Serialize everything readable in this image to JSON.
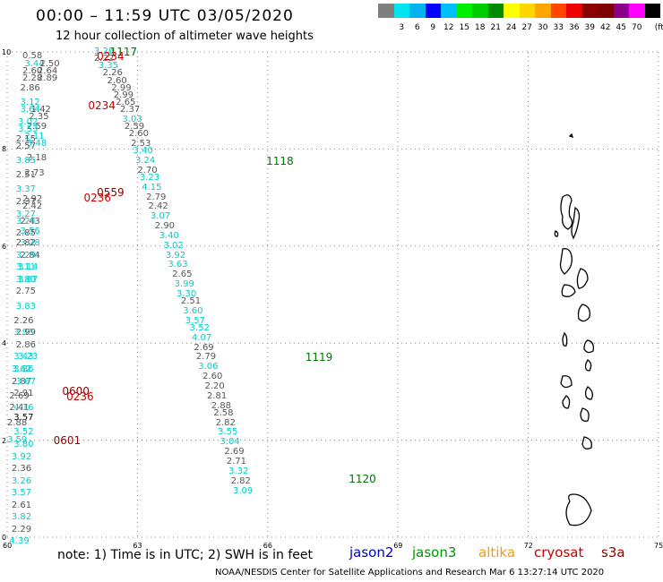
{
  "title": "00:00 – 11:59 UTC 03/05/2020",
  "subtitle": "12 hour collection of altimeter wave heights",
  "colorbar": {
    "colors": [
      "#7f7f7f",
      "#00e5ee",
      "#00b2ee",
      "#0000ff",
      "#00bfff",
      "#00ee00",
      "#00cd00",
      "#008b00",
      "#ffff00",
      "#ffd700",
      "#ffa500",
      "#ff4500",
      "#ee0000",
      "#8b0000",
      "#800000",
      "#8b008b",
      "#ff00ff",
      "#000000"
    ],
    "labels": [
      "3",
      "6",
      "9",
      "12",
      "15",
      "18",
      "21",
      "24",
      "27",
      "30",
      "33",
      "36",
      "39",
      "42",
      "45",
      "70"
    ],
    "unit": "(ft)"
  },
  "axes": {
    "x_ticks": [
      "60",
      "63",
      "66",
      "69",
      "72",
      "75"
    ],
    "y_ticks": [
      "0",
      "2",
      "4",
      "6",
      "8",
      "10"
    ],
    "xlim": [
      60,
      75
    ],
    "ylim": [
      0,
      10
    ]
  },
  "tracks": [
    {
      "label": "1117",
      "color": "#007700",
      "lon": 62.2,
      "lat": 10.0
    },
    {
      "label": "1118",
      "color": "#007700",
      "lon": 65.8,
      "lat": 7.75
    },
    {
      "label": "1119",
      "color": "#007700",
      "lon": 66.7,
      "lat": 3.7
    },
    {
      "label": "1120",
      "color": "#007700",
      "lon": 67.7,
      "lat": 1.2
    },
    {
      "label": "0234",
      "color": "#cc0000",
      "lon": 61.9,
      "lat": 9.9
    },
    {
      "label": "0234",
      "color": "#cc0000",
      "lon": 61.7,
      "lat": 8.9
    },
    {
      "label": "0559",
      "color": "#880000",
      "lon": 61.9,
      "lat": 7.1
    },
    {
      "label": "0236",
      "color": "#cc0000",
      "lon": 61.6,
      "lat": 7.0
    },
    {
      "label": "0600",
      "color": "#880000",
      "lon": 61.1,
      "lat": 3.0
    },
    {
      "label": "0236",
      "color": "#cc0000",
      "lon": 61.2,
      "lat": 2.9
    },
    {
      "label": "0601",
      "color": "#880000",
      "lon": 60.9,
      "lat": 2.0
    }
  ],
  "points": [
    {
      "v": "3.28",
      "lon": 62.0,
      "lat": 10.0,
      "c": "#00cccc"
    },
    {
      "v": "2.22",
      "lon": 62.0,
      "lat": 9.85,
      "c": "#555555"
    },
    {
      "v": "3.35",
      "lon": 62.1,
      "lat": 9.7,
      "c": "#00cccc"
    },
    {
      "v": "2.26",
      "lon": 62.2,
      "lat": 9.55,
      "c": "#555555"
    },
    {
      "v": "2.60",
      "lon": 62.3,
      "lat": 9.4,
      "c": "#555555"
    },
    {
      "v": "2.99",
      "lon": 62.4,
      "lat": 9.25,
      "c": "#555555"
    },
    {
      "v": "2.99",
      "lon": 62.45,
      "lat": 9.1,
      "c": "#555555"
    },
    {
      "v": "2.65",
      "lon": 62.5,
      "lat": 8.95,
      "c": "#555555"
    },
    {
      "v": "2.37",
      "lon": 62.6,
      "lat": 8.8,
      "c": "#555555"
    },
    {
      "v": "3.03",
      "lon": 62.65,
      "lat": 8.6,
      "c": "#00cccc"
    },
    {
      "v": "2.59",
      "lon": 62.7,
      "lat": 8.45,
      "c": "#555555"
    },
    {
      "v": "2.60",
      "lon": 62.8,
      "lat": 8.3,
      "c": "#555555"
    },
    {
      "v": "2.53",
      "lon": 62.85,
      "lat": 8.1,
      "c": "#555555"
    },
    {
      "v": "3.40",
      "lon": 62.9,
      "lat": 7.95,
      "c": "#00cccc"
    },
    {
      "v": "3.24",
      "lon": 62.95,
      "lat": 7.75,
      "c": "#00cccc"
    },
    {
      "v": "2.70",
      "lon": 63.0,
      "lat": 7.55,
      "c": "#555555"
    },
    {
      "v": "3.23",
      "lon": 63.05,
      "lat": 7.4,
      "c": "#00cccc"
    },
    {
      "v": "4.15",
      "lon": 63.1,
      "lat": 7.2,
      "c": "#00cccc"
    },
    {
      "v": "2.79",
      "lon": 63.2,
      "lat": 7.0,
      "c": "#555555"
    },
    {
      "v": "2.42",
      "lon": 63.25,
      "lat": 6.8,
      "c": "#555555"
    },
    {
      "v": "3.07",
      "lon": 63.3,
      "lat": 6.6,
      "c": "#00cccc"
    },
    {
      "v": "2.90",
      "lon": 63.4,
      "lat": 6.4,
      "c": "#555555"
    },
    {
      "v": "3.40",
      "lon": 63.5,
      "lat": 6.2,
      "c": "#00cccc"
    },
    {
      "v": "3.02",
      "lon": 63.6,
      "lat": 6.0,
      "c": "#00cccc"
    },
    {
      "v": "3.92",
      "lon": 63.65,
      "lat": 5.8,
      "c": "#00cccc"
    },
    {
      "v": "3.63",
      "lon": 63.7,
      "lat": 5.6,
      "c": "#00cccc"
    },
    {
      "v": "2.65",
      "lon": 63.8,
      "lat": 5.4,
      "c": "#555555"
    },
    {
      "v": "3.99",
      "lon": 63.85,
      "lat": 5.2,
      "c": "#00cccc"
    },
    {
      "v": "3.30",
      "lon": 63.9,
      "lat": 5.0,
      "c": "#00cccc"
    },
    {
      "v": "2.51",
      "lon": 64.0,
      "lat": 4.85,
      "c": "#555555"
    },
    {
      "v": "3.60",
      "lon": 64.05,
      "lat": 4.65,
      "c": "#00cccc"
    },
    {
      "v": "3.57",
      "lon": 64.1,
      "lat": 4.45,
      "c": "#00cccc"
    },
    {
      "v": "3.52",
      "lon": 64.2,
      "lat": 4.3,
      "c": "#00cccc"
    },
    {
      "v": "4.07",
      "lon": 64.25,
      "lat": 4.1,
      "c": "#00cccc"
    },
    {
      "v": "2.69",
      "lon": 64.3,
      "lat": 3.9,
      "c": "#555555"
    },
    {
      "v": "2.79",
      "lon": 64.35,
      "lat": 3.7,
      "c": "#555555"
    },
    {
      "v": "3.06",
      "lon": 64.4,
      "lat": 3.5,
      "c": "#00cccc"
    },
    {
      "v": "2.60",
      "lon": 64.5,
      "lat": 3.3,
      "c": "#555555"
    },
    {
      "v": "2.20",
      "lon": 64.55,
      "lat": 3.1,
      "c": "#555555"
    },
    {
      "v": "2.81",
      "lon": 64.6,
      "lat": 2.9,
      "c": "#555555"
    },
    {
      "v": "2.88",
      "lon": 64.7,
      "lat": 2.7,
      "c": "#555555"
    },
    {
      "v": "2.58",
      "lon": 64.75,
      "lat": 2.55,
      "c": "#555555"
    },
    {
      "v": "2.82",
      "lon": 64.8,
      "lat": 2.35,
      "c": "#555555"
    },
    {
      "v": "3.55",
      "lon": 64.85,
      "lat": 2.15,
      "c": "#00cccc"
    },
    {
      "v": "3.04",
      "lon": 64.9,
      "lat": 1.95,
      "c": "#00cccc"
    },
    {
      "v": "2.69",
      "lon": 65.0,
      "lat": 1.75,
      "c": "#555555"
    },
    {
      "v": "2.71",
      "lon": 65.05,
      "lat": 1.55,
      "c": "#555555"
    },
    {
      "v": "3.32",
      "lon": 65.1,
      "lat": 1.35,
      "c": "#00cccc"
    },
    {
      "v": "2.82",
      "lon": 65.15,
      "lat": 1.15,
      "c": "#555555"
    },
    {
      "v": "3.09",
      "lon": 65.2,
      "lat": 0.95,
      "c": "#00cccc"
    },
    {
      "v": "0.58",
      "lon": 60.35,
      "lat": 9.9,
      "c": "#555555"
    },
    {
      "v": "3.44",
      "lon": 60.4,
      "lat": 9.75,
      "c": "#00cccc"
    },
    {
      "v": "2.50",
      "lon": 60.75,
      "lat": 9.75,
      "c": "#555555"
    },
    {
      "v": "2.60",
      "lon": 60.35,
      "lat": 9.6,
      "c": "#555555"
    },
    {
      "v": "2.64",
      "lon": 60.7,
      "lat": 9.6,
      "c": "#555555"
    },
    {
      "v": "2.28",
      "lon": 60.35,
      "lat": 9.45,
      "c": "#555555"
    },
    {
      "v": "2.89",
      "lon": 60.7,
      "lat": 9.45,
      "c": "#555555"
    },
    {
      "v": "2.86",
      "lon": 60.3,
      "lat": 9.25,
      "c": "#555555"
    },
    {
      "v": "3.12",
      "lon": 60.3,
      "lat": 8.95,
      "c": "#00cccc"
    },
    {
      "v": "3.64",
      "lon": 60.3,
      "lat": 8.8,
      "c": "#00cccc"
    },
    {
      "v": "1.42",
      "lon": 60.55,
      "lat": 8.8,
      "c": "#555555"
    },
    {
      "v": "2.35",
      "lon": 60.5,
      "lat": 8.65,
      "c": "#555555"
    },
    {
      "v": "3.02",
      "lon": 60.25,
      "lat": 8.55,
      "c": "#00cccc"
    },
    {
      "v": "2.59",
      "lon": 60.45,
      "lat": 8.45,
      "c": "#555555"
    },
    {
      "v": "3.53",
      "lon": 60.25,
      "lat": 8.4,
      "c": "#00cccc"
    },
    {
      "v": "2.11",
      "lon": 60.4,
      "lat": 8.25,
      "c": "#00cccc"
    },
    {
      "v": "2.15",
      "lon": 60.2,
      "lat": 8.2,
      "c": "#555555"
    },
    {
      "v": "3.48",
      "lon": 60.45,
      "lat": 8.1,
      "c": "#00cccc"
    },
    {
      "v": "2.57",
      "lon": 60.2,
      "lat": 8.05,
      "c": "#555555"
    },
    {
      "v": "2.18",
      "lon": 60.45,
      "lat": 7.8,
      "c": "#555555"
    },
    {
      "v": "3.85",
      "lon": 60.2,
      "lat": 7.75,
      "c": "#00cccc"
    },
    {
      "v": "2.73",
      "lon": 60.4,
      "lat": 7.5,
      "c": "#555555"
    },
    {
      "v": "2.51",
      "lon": 60.2,
      "lat": 7.45,
      "c": "#555555"
    },
    {
      "v": "3.37",
      "lon": 60.2,
      "lat": 7.15,
      "c": "#00cccc"
    },
    {
      "v": "2.92",
      "lon": 60.35,
      "lat": 6.95,
      "c": "#555555"
    },
    {
      "v": "2.37",
      "lon": 60.2,
      "lat": 6.9,
      "c": "#555555"
    },
    {
      "v": "2.42",
      "lon": 60.35,
      "lat": 6.8,
      "c": "#555555"
    },
    {
      "v": "3.27",
      "lon": 60.2,
      "lat": 6.65,
      "c": "#00cccc"
    },
    {
      "v": "2.43",
      "lon": 60.3,
      "lat": 6.5,
      "c": "#555555"
    },
    {
      "v": "3.24",
      "lon": 60.2,
      "lat": 6.5,
      "c": "#00cccc"
    },
    {
      "v": "3.56",
      "lon": 60.3,
      "lat": 6.3,
      "c": "#00cccc"
    },
    {
      "v": "2.85",
      "lon": 60.2,
      "lat": 6.25,
      "c": "#555555"
    },
    {
      "v": "3.28",
      "lon": 60.3,
      "lat": 6.05,
      "c": "#00cccc"
    },
    {
      "v": "2.82",
      "lon": 60.2,
      "lat": 6.05,
      "c": "#555555"
    },
    {
      "v": "2.84",
      "lon": 60.3,
      "lat": 5.8,
      "c": "#555555"
    },
    {
      "v": "3.29",
      "lon": 60.2,
      "lat": 5.8,
      "c": "#00cccc"
    },
    {
      "v": "3.14",
      "lon": 60.25,
      "lat": 5.55,
      "c": "#00cccc"
    },
    {
      "v": "3.11",
      "lon": 60.2,
      "lat": 5.55,
      "c": "#00cccc"
    },
    {
      "v": "3.67",
      "lon": 60.25,
      "lat": 5.3,
      "c": "#00cccc"
    },
    {
      "v": "3.80",
      "lon": 60.2,
      "lat": 5.3,
      "c": "#00cccc"
    },
    {
      "v": "2.75",
      "lon": 60.2,
      "lat": 5.05,
      "c": "#555555"
    },
    {
      "v": "3.83",
      "lon": 60.2,
      "lat": 4.75,
      "c": "#00cccc"
    },
    {
      "v": "2.26",
      "lon": 60.15,
      "lat": 4.45,
      "c": "#555555"
    },
    {
      "v": "2.99",
      "lon": 60.2,
      "lat": 4.2,
      "c": "#555555"
    },
    {
      "v": "3.93",
      "lon": 60.15,
      "lat": 4.2,
      "c": "#00cccc"
    },
    {
      "v": "2.86",
      "lon": 60.2,
      "lat": 3.95,
      "c": "#555555"
    },
    {
      "v": "3.43",
      "lon": 60.15,
      "lat": 3.7,
      "c": "#00cccc"
    },
    {
      "v": "3.23",
      "lon": 60.25,
      "lat": 3.7,
      "c": "#00cccc"
    },
    {
      "v": "3.86",
      "lon": 60.15,
      "lat": 3.45,
      "c": "#00cccc"
    },
    {
      "v": "3.62",
      "lon": 60.1,
      "lat": 3.45,
      "c": "#00cccc"
    },
    {
      "v": "2.87",
      "lon": 60.1,
      "lat": 3.2,
      "c": "#555555"
    },
    {
      "v": "3.67",
      "lon": 60.2,
      "lat": 3.2,
      "c": "#00cccc"
    },
    {
      "v": "2.91",
      "lon": 60.15,
      "lat": 2.95,
      "c": "#555555"
    },
    {
      "v": "2.69",
      "lon": 60.05,
      "lat": 2.9,
      "c": "#555555"
    },
    {
      "v": "2.41",
      "lon": 60.05,
      "lat": 2.65,
      "c": "#555555"
    },
    {
      "v": "4.16",
      "lon": 60.15,
      "lat": 2.65,
      "c": "#00cccc"
    },
    {
      "v": "3.57",
      "lon": 60.15,
      "lat": 2.45,
      "c": "#000000"
    },
    {
      "v": "2.88",
      "lon": 60.0,
      "lat": 2.35,
      "c": "#555555"
    },
    {
      "v": "3.52",
      "lon": 60.15,
      "lat": 2.15,
      "c": "#00cccc"
    },
    {
      "v": "3.59",
      "lon": 60.0,
      "lat": 2.0,
      "c": "#00cccc"
    },
    {
      "v": "3.80",
      "lon": 60.15,
      "lat": 1.9,
      "c": "#00cccc"
    },
    {
      "v": "3.92",
      "lon": 60.1,
      "lat": 1.65,
      "c": "#00cccc"
    },
    {
      "v": "2.36",
      "lon": 60.1,
      "lat": 1.4,
      "c": "#555555"
    },
    {
      "v": "3.26",
      "lon": 60.1,
      "lat": 1.15,
      "c": "#00cccc"
    },
    {
      "v": "3.57",
      "lon": 60.1,
      "lat": 0.9,
      "c": "#00cccc"
    },
    {
      "v": "2.61",
      "lon": 60.1,
      "lat": 0.65,
      "c": "#555555"
    },
    {
      "v": "3.82",
      "lon": 60.1,
      "lat": 0.4,
      "c": "#00cccc"
    },
    {
      "v": "2.29",
      "lon": 60.1,
      "lat": 0.15,
      "c": "#555555"
    },
    {
      "v": "4.39",
      "lon": 60.05,
      "lat": -0.1,
      "c": "#00cccc"
    }
  ],
  "note": "note:  1) Time is in UTC;  2) SWH is in feet",
  "legend": [
    {
      "name": "jason2",
      "color": "#0000cc"
    },
    {
      "name": "jason3",
      "color": "#009900"
    },
    {
      "name": "altika",
      "color": "#ff9900"
    },
    {
      "name": "cryosat",
      "color": "#cc0000"
    },
    {
      "name": "s3a",
      "color": "#990000"
    }
  ],
  "credit": "NOAA/NESDIS Center for Satellite Applications and Research    Mar  6 13:27:14 UTC 2020"
}
